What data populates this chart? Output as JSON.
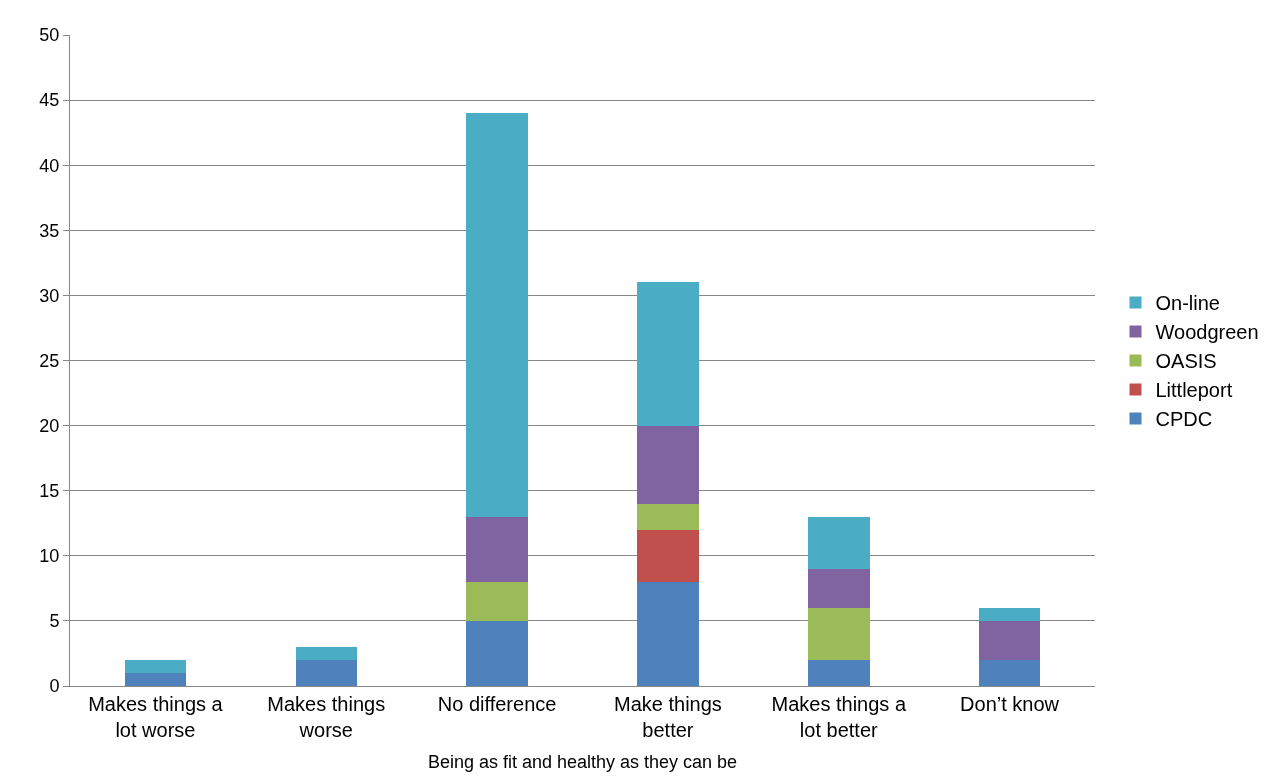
{
  "chart_data": {
    "type": "bar",
    "stacked": true,
    "xlabel": "Being as fit and healthy as they can be",
    "categories": [
      "Makes things a lot worse",
      "Makes things worse",
      "No difference",
      "Make things better",
      "Makes things a lot better",
      "Don’t know"
    ],
    "series": [
      {
        "name": "CPDC",
        "color": "#4f81bd",
        "values": [
          1,
          2,
          5,
          8,
          2,
          2
        ]
      },
      {
        "name": "Littleport",
        "color": "#c0504d",
        "values": [
          0,
          0,
          0,
          4,
          0,
          0
        ]
      },
      {
        "name": "OASIS",
        "color": "#9bbb59",
        "values": [
          0,
          0,
          3,
          2,
          4,
          0
        ]
      },
      {
        "name": "Woodgreen",
        "color": "#8064a2",
        "values": [
          0,
          0,
          5,
          6,
          3,
          3
        ]
      },
      {
        "name": "On-line",
        "color": "#4bacc6",
        "values": [
          1,
          1,
          31,
          11,
          4,
          1
        ]
      }
    ],
    "ylim": [
      0,
      50
    ],
    "yticks": [
      0,
      5,
      10,
      15,
      20,
      25,
      30,
      35,
      40,
      45,
      50
    ],
    "grid": "y",
    "legend": "right"
  }
}
